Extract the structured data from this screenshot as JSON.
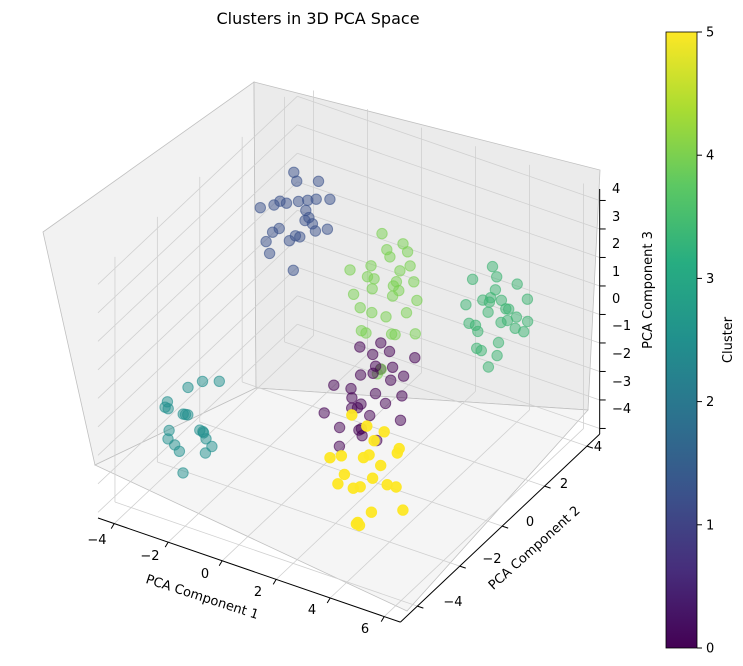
{
  "chart_data": {
    "type": "scatter",
    "projection": "3d",
    "title": "Clusters in 3D PCA Space",
    "xlabel": "PCA Component 1",
    "ylabel": "PCA Component 2",
    "zlabel": "PCA Component 3",
    "xticks": [
      "−4",
      "−2",
      "0",
      "2",
      "4",
      "6"
    ],
    "yticks": [
      "−4",
      "−2",
      "0",
      "2",
      "4"
    ],
    "zticks": [
      "−4",
      "−3",
      "−2",
      "−1",
      "0",
      "1",
      "2",
      "3",
      "4"
    ],
    "grid": true,
    "colorbar": {
      "label": "Cluster",
      "ticks": [
        "0",
        "1",
        "2",
        "3",
        "4",
        "5"
      ],
      "range": [
        0,
        5
      ],
      "colormap": "viridis"
    },
    "cluster_colors": [
      "#440154",
      "#3b528b",
      "#21908d",
      "#3cb371",
      "#7ad151",
      "#fde725"
    ],
    "series": [
      {
        "cluster": 0,
        "points": [
          [
            1.2,
            0.2,
            -0.8
          ],
          [
            1.6,
            0.4,
            -0.5
          ],
          [
            1.0,
            0.0,
            -1.2
          ],
          [
            2.0,
            0.6,
            -1.0
          ],
          [
            1.4,
            -0.2,
            -1.6
          ],
          [
            1.8,
            0.8,
            -0.2
          ],
          [
            0.8,
            0.3,
            -1.8
          ],
          [
            2.2,
            0.1,
            -1.4
          ],
          [
            1.1,
            0.9,
            -0.6
          ],
          [
            1.7,
            -0.4,
            -2.1
          ],
          [
            0.6,
            -0.3,
            -1.0
          ],
          [
            2.4,
            0.7,
            -0.8
          ],
          [
            1.3,
            0.5,
            -2.4
          ],
          [
            1.9,
            -0.1,
            -0.3
          ],
          [
            0.9,
            0.6,
            -2.2
          ],
          [
            2.1,
            1.0,
            -1.8
          ],
          [
            1.5,
            -0.6,
            -1.3
          ],
          [
            0.7,
            0.8,
            -0.4
          ],
          [
            2.6,
            0.3,
            -2.0
          ],
          [
            1.2,
            -0.8,
            -2.6
          ],
          [
            1.6,
            1.2,
            -1.1
          ],
          [
            0.5,
            0.1,
            -2.8
          ],
          [
            2.3,
            -0.5,
            -0.6
          ],
          [
            1.0,
            1.4,
            -1.5
          ],
          [
            1.8,
            0.2,
            -2.9
          ],
          [
            1.4,
            0.9,
            -0.1
          ],
          [
            0.4,
            -0.5,
            -1.9
          ],
          [
            2.0,
            -0.9,
            -1.7
          ],
          [
            1.1,
            0.4,
            -3.1
          ],
          [
            2.5,
            1.1,
            -0.4
          ]
        ]
      },
      {
        "cluster": 1,
        "points": [
          [
            -2.8,
            1.8,
            2.8
          ],
          [
            -2.4,
            2.2,
            2.4
          ],
          [
            -3.0,
            1.4,
            2.0
          ],
          [
            -2.2,
            1.6,
            3.2
          ],
          [
            -2.6,
            2.6,
            1.8
          ],
          [
            -3.2,
            2.0,
            2.6
          ],
          [
            -2.0,
            2.0,
            2.2
          ],
          [
            -2.8,
            1.0,
            1.6
          ],
          [
            -2.4,
            2.8,
            3.0
          ],
          [
            -3.4,
            1.6,
            1.4
          ],
          [
            -1.8,
            1.4,
            2.8
          ],
          [
            -2.6,
            1.2,
            2.4
          ],
          [
            -3.0,
            2.4,
            3.4
          ],
          [
            -2.2,
            2.4,
            1.6
          ],
          [
            -1.6,
            2.2,
            2.0
          ],
          [
            -2.8,
            2.8,
            2.2
          ],
          [
            -3.3,
            1.2,
            2.9
          ],
          [
            -2.0,
            1.1,
            1.2
          ],
          [
            -2.5,
            1.9,
            3.6
          ],
          [
            -1.9,
            2.7,
            2.6
          ],
          [
            -3.1,
            2.6,
            1.0
          ],
          [
            -2.3,
            1.3,
            2.0
          ],
          [
            -1.7,
            1.8,
            3.3
          ],
          [
            -2.7,
            2.3,
            1.3
          ],
          [
            -3.5,
            2.1,
            2.3
          ]
        ]
      },
      {
        "cluster": 2,
        "points": [
          [
            -3.4,
            -2.2,
            -2.0
          ],
          [
            -3.0,
            -2.6,
            -1.6
          ],
          [
            -3.8,
            -1.8,
            -2.4
          ],
          [
            -2.8,
            -2.0,
            -2.8
          ],
          [
            -3.6,
            -2.8,
            -1.2
          ],
          [
            -3.2,
            -1.6,
            -3.0
          ],
          [
            -2.6,
            -2.4,
            -2.2
          ],
          [
            -4.0,
            -2.4,
            -1.8
          ],
          [
            -3.0,
            -3.0,
            -2.6
          ],
          [
            -3.4,
            -1.4,
            -1.4
          ],
          [
            -2.4,
            -2.8,
            -1.8
          ],
          [
            -3.8,
            -2.2,
            -3.2
          ],
          [
            -2.9,
            -1.9,
            -3.4
          ],
          [
            -3.5,
            -2.9,
            -2.4
          ],
          [
            -2.7,
            -1.5,
            -1.1
          ],
          [
            -4.2,
            -2.0,
            -2.2
          ],
          [
            -3.1,
            -2.7,
            -3.6
          ],
          [
            -2.5,
            -2.1,
            -2.9
          ],
          [
            -3.7,
            -1.7,
            -1.5
          ],
          [
            -3.3,
            -3.1,
            -1.9
          ]
        ]
      },
      {
        "cluster": 3,
        "points": [
          [
            4.4,
            2.2,
            1.4
          ],
          [
            4.8,
            2.6,
            1.0
          ],
          [
            4.2,
            1.8,
            0.8
          ],
          [
            5.0,
            2.0,
            1.8
          ],
          [
            4.6,
            2.8,
            0.4
          ],
          [
            4.0,
            2.4,
            1.2
          ],
          [
            5.2,
            2.4,
            0.6
          ],
          [
            4.4,
            1.6,
            0.2
          ],
          [
            4.8,
            3.0,
            1.6
          ],
          [
            3.8,
            2.0,
            0.6
          ],
          [
            5.4,
            2.2,
            1.2
          ],
          [
            4.6,
            1.4,
            1.0
          ],
          [
            4.2,
            2.8,
            1.8
          ],
          [
            5.0,
            1.8,
            0.0
          ],
          [
            4.0,
            1.6,
            1.6
          ],
          [
            5.2,
            2.8,
            0.2
          ],
          [
            4.5,
            2.5,
            -0.2
          ],
          [
            3.9,
            2.9,
            0.9
          ],
          [
            5.3,
            1.6,
            1.4
          ],
          [
            4.7,
            2.1,
            2.0
          ],
          [
            4.1,
            2.2,
            -0.4
          ],
          [
            5.5,
            2.6,
            0.8
          ],
          [
            4.3,
            3.1,
            0.5
          ],
          [
            4.9,
            1.5,
            1.7
          ],
          [
            3.7,
            2.3,
            1.9
          ],
          [
            5.1,
            3.1,
            1.1
          ],
          [
            4.6,
            1.9,
            -0.6
          ],
          [
            4.2,
            2.6,
            2.3
          ]
        ]
      },
      {
        "cluster": 4,
        "points": [
          [
            0.6,
            1.6,
            1.4
          ],
          [
            1.0,
            2.0,
            1.0
          ],
          [
            0.4,
            1.2,
            0.6
          ],
          [
            1.4,
            1.8,
            1.8
          ],
          [
            0.8,
            2.4,
            0.8
          ],
          [
            0.2,
            1.8,
            1.2
          ],
          [
            1.2,
            1.4,
            0.4
          ],
          [
            0.6,
            2.2,
            2.0
          ],
          [
            1.6,
            2.2,
            1.2
          ],
          [
            0.0,
            1.4,
            0.8
          ],
          [
            1.0,
            1.0,
            1.6
          ],
          [
            0.4,
            2.6,
            1.4
          ],
          [
            1.8,
            1.6,
            0.6
          ],
          [
            0.8,
            1.2,
            2.2
          ],
          [
            1.4,
            2.6,
            0.2
          ],
          [
            0.2,
            2.0,
            -0.2
          ],
          [
            1.2,
            2.2,
            2.4
          ],
          [
            0.6,
            1.0,
            0.0
          ],
          [
            1.6,
            1.2,
            1.4
          ],
          [
            0.9,
            2.8,
            1.6
          ],
          [
            0.3,
            1.6,
            -0.6
          ],
          [
            1.3,
            1.7,
            -0.4
          ],
          [
            0.7,
            2.3,
            -1.0
          ],
          [
            1.1,
            1.3,
            -1.4
          ],
          [
            0.5,
            2.1,
            2.6
          ],
          [
            1.5,
            2.4,
            -0.8
          ],
          [
            0.1,
            1.1,
            1.9
          ],
          [
            1.7,
            1.9,
            2.0
          ],
          [
            0.8,
            1.5,
            -1.8
          ],
          [
            1.2,
            2.0,
            0.9
          ]
        ]
      },
      {
        "cluster": 5,
        "points": [
          [
            3.0,
            -1.8,
            -0.6
          ],
          [
            3.4,
            -2.2,
            -1.2
          ],
          [
            2.8,
            -2.6,
            -1.8
          ],
          [
            3.8,
            -2.0,
            -0.4
          ],
          [
            3.2,
            -1.4,
            -2.2
          ],
          [
            2.6,
            -2.0,
            -0.2
          ],
          [
            4.0,
            -2.8,
            -1.4
          ],
          [
            3.6,
            -1.6,
            -2.6
          ],
          [
            2.4,
            -2.4,
            -2.4
          ],
          [
            4.2,
            -1.8,
            -1.0
          ],
          [
            3.0,
            -3.0,
            -0.8
          ],
          [
            3.8,
            -2.6,
            -2.8
          ],
          [
            2.8,
            -1.2,
            -1.6
          ],
          [
            4.4,
            -2.2,
            -2.0
          ],
          [
            3.4,
            -2.8,
            -3.2
          ],
          [
            2.6,
            -1.6,
            -3.0
          ],
          [
            4.6,
            -2.4,
            -0.6
          ],
          [
            3.2,
            -2.4,
            -3.6
          ],
          [
            3.6,
            -3.2,
            -1.6
          ],
          [
            2.5,
            -2.9,
            -1.1
          ],
          [
            4.1,
            -1.5,
            -3.4
          ],
          [
            3.9,
            -3.1,
            -0.5
          ],
          [
            2.9,
            -2.1,
            -3.8
          ]
        ]
      }
    ]
  }
}
